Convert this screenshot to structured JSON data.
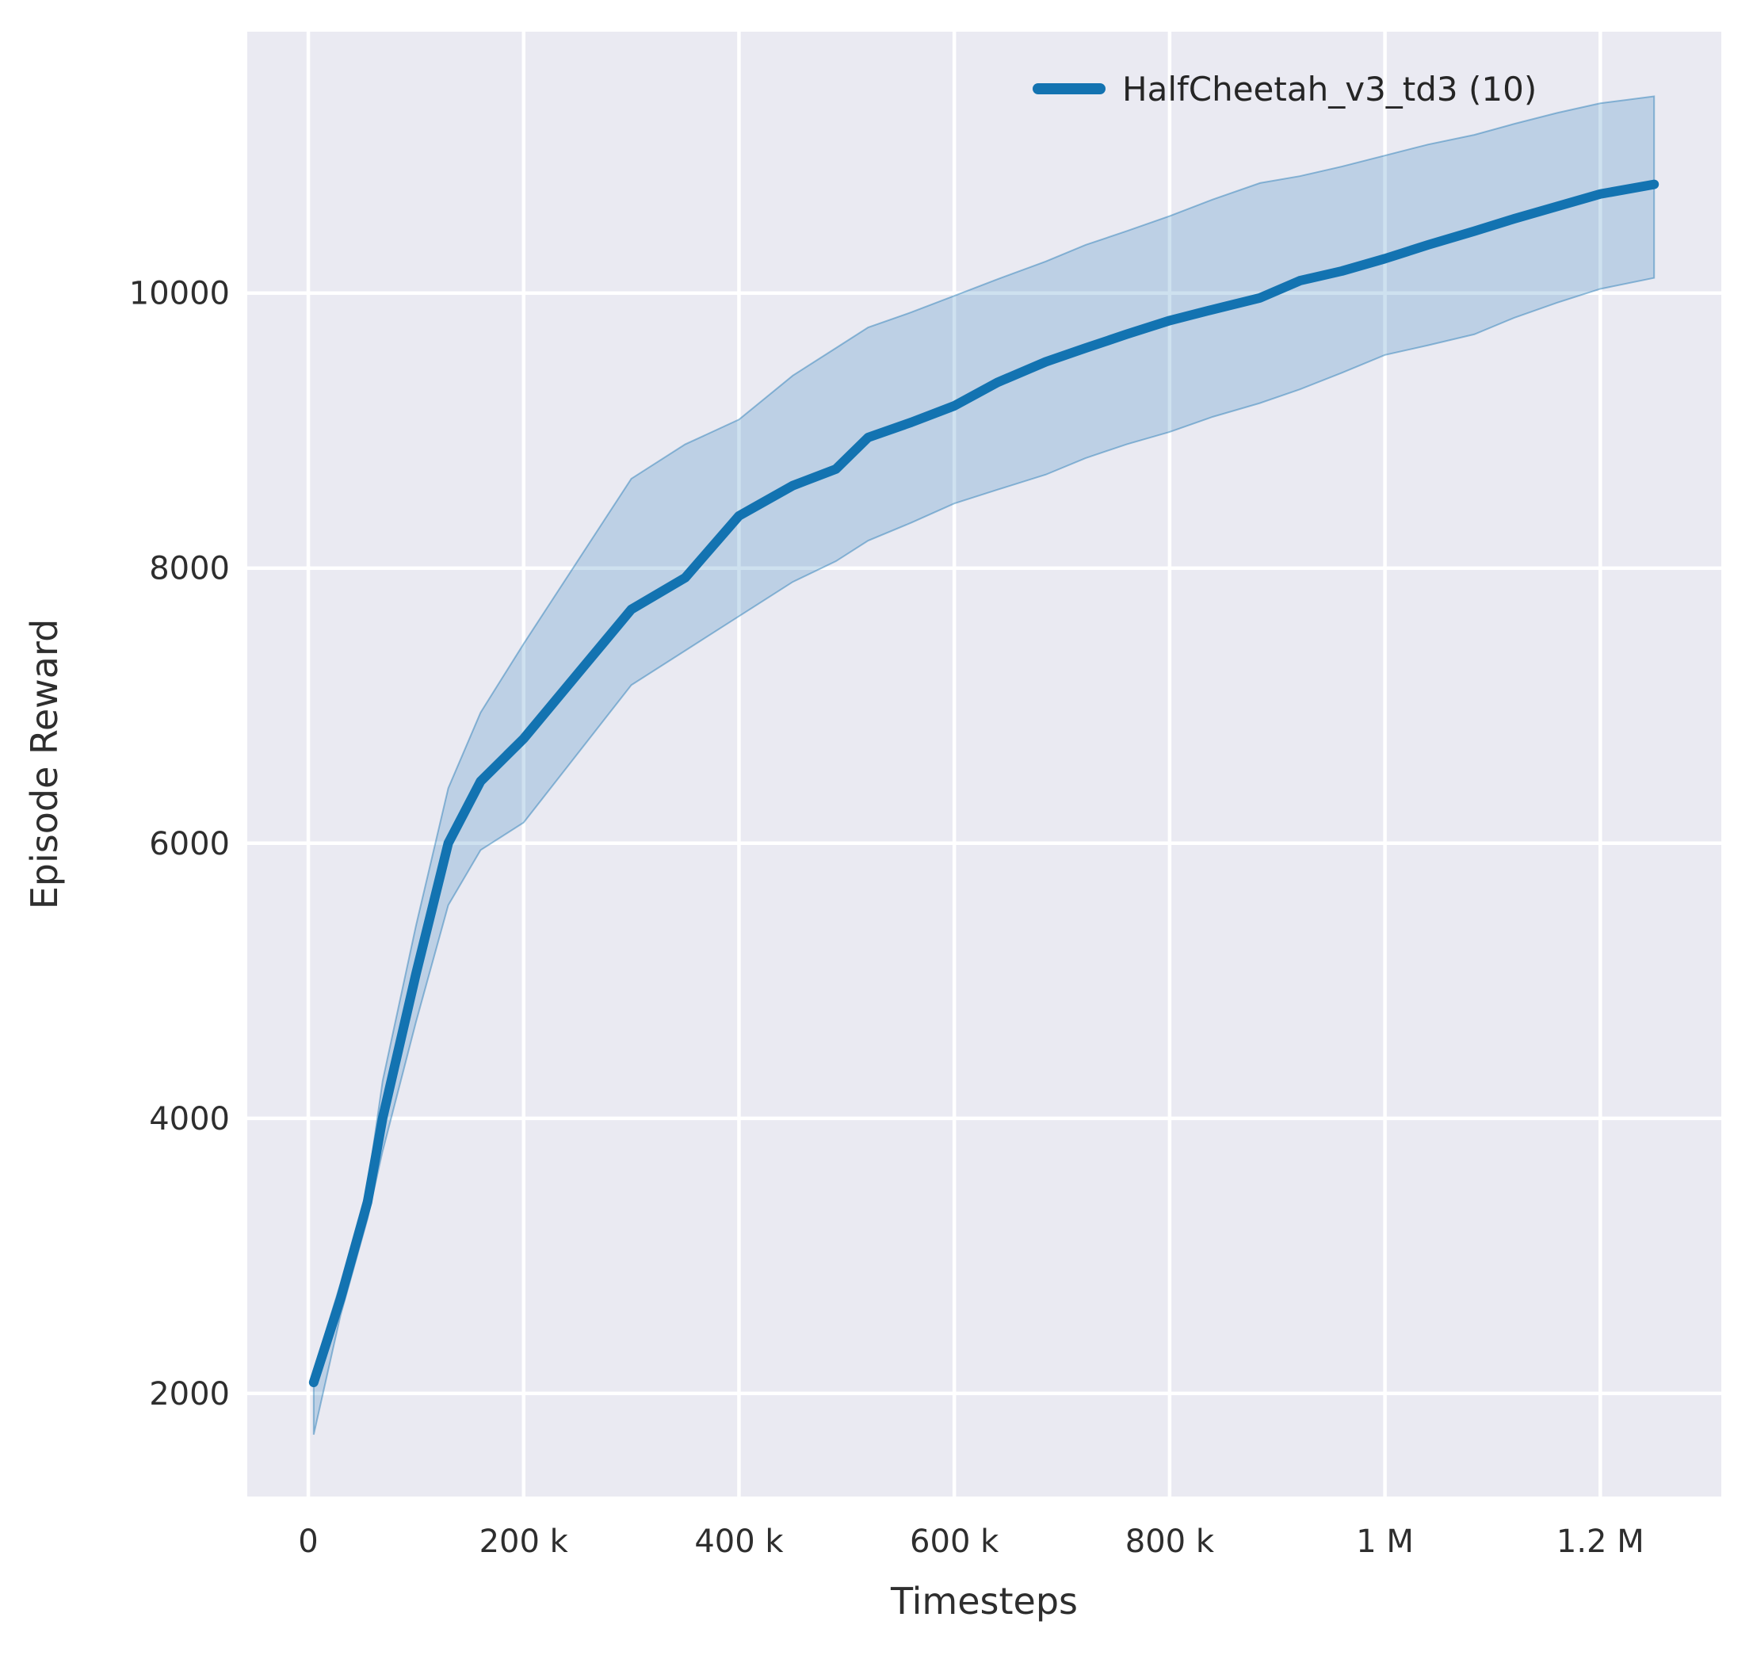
{
  "figure": {
    "background": "#ffffff",
    "axes_background": "#eaeaf2",
    "grid_color": "#ffffff",
    "text_color": "#2e2e2e"
  },
  "chart_data": {
    "type": "line",
    "title": "",
    "xlabel": "Timesteps",
    "ylabel": "Episode Reward",
    "grid": true,
    "legend_position": "upper right",
    "legend": [
      {
        "label": "HalfCheetah_v3_td3 (10)",
        "color": "#1373b1"
      }
    ],
    "xlim": [
      -56700,
      1312400
    ],
    "ylim": [
      1250,
      11900
    ],
    "xticks": {
      "values": [
        0,
        200000,
        400000,
        600000,
        800000,
        1000000,
        1200000
      ],
      "labels": [
        "0",
        "200 k",
        "400 k",
        "600 k",
        "800 k",
        "1 M",
        "1.2 M"
      ]
    },
    "yticks": {
      "values": [
        2000,
        4000,
        6000,
        8000,
        10000
      ],
      "labels": [
        "2000",
        "4000",
        "6000",
        "8000",
        "10000"
      ]
    },
    "series": [
      {
        "name": "HalfCheetah_v3_td3 (10)",
        "color": "#1373b1",
        "band_fill": "#1f77b4",
        "band_opacity": 0.22,
        "band_edge_opacity": 0.45,
        "x": [
          5000,
          30000,
          55000,
          69000,
          100000,
          130000,
          160000,
          200000,
          250000,
          300000,
          350000,
          400000,
          450000,
          490000,
          520000,
          560000,
          600000,
          640000,
          685000,
          722000,
          760000,
          800000,
          840000,
          884000,
          921000,
          960000,
          1000000,
          1040000,
          1083000,
          1120000,
          1160000,
          1200000,
          1250000
        ],
        "mean": [
          2080,
          2690,
          3390,
          4000,
          5050,
          6000,
          6450,
          6760,
          7230,
          7700,
          7930,
          8380,
          8600,
          8720,
          8950,
          9060,
          9180,
          9350,
          9500,
          9600,
          9700,
          9800,
          9880,
          9965,
          10090,
          10160,
          10250,
          10350,
          10450,
          10540,
          10630,
          10720,
          10790
        ],
        "lower": [
          1700,
          2570,
          3270,
          3760,
          4700,
          5550,
          5950,
          6150,
          6650,
          7150,
          7400,
          7650,
          7900,
          8050,
          8200,
          8330,
          8470,
          8570,
          8680,
          8800,
          8900,
          8990,
          9100,
          9200,
          9300,
          9420,
          9550,
          9620,
          9700,
          9820,
          9930,
          10030,
          10110
        ],
        "upper": [
          2160,
          2800,
          3500,
          4270,
          5400,
          6400,
          6950,
          7450,
          8050,
          8650,
          8900,
          9080,
          9400,
          9600,
          9750,
          9860,
          9980,
          10100,
          10230,
          10350,
          10450,
          10560,
          10680,
          10800,
          10850,
          10920,
          11000,
          11080,
          11150,
          11230,
          11310,
          11380,
          11430
        ]
      }
    ]
  }
}
